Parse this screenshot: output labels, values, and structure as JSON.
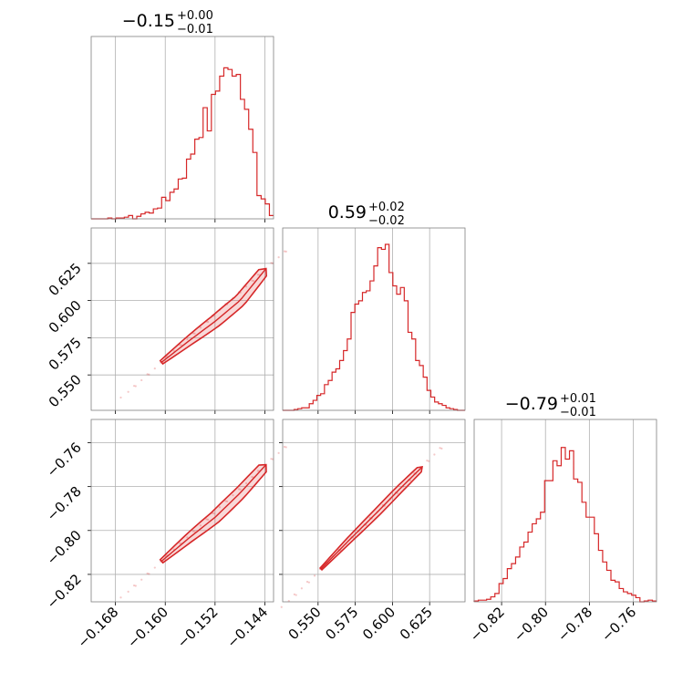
{
  "chart_data": {
    "type": "corner",
    "color": "#d62728",
    "parameters": [
      {
        "title_main": "−0.15",
        "title_sup": "+0.00",
        "title_sub": "−0.01",
        "ticks": [
          -0.168,
          -0.16,
          -0.152,
          -0.144
        ],
        "tick_labels": [
          "−0.168",
          "−0.160",
          "−0.152",
          "−0.144"
        ],
        "range": [
          -0.1719,
          -0.1426
        ]
      },
      {
        "title_main": "0.59",
        "title_sup": "+0.02",
        "title_sub": "−0.02",
        "ticks": [
          0.55,
          0.575,
          0.6,
          0.625
        ],
        "tick_labels": [
          "0.550",
          "0.575",
          "0.600",
          "0.625"
        ],
        "range": [
          0.5262,
          0.6488
        ]
      },
      {
        "title_main": "−0.79",
        "title_sup": "+0.01",
        "title_sub": "−0.01",
        "ticks": [
          -0.82,
          -0.8,
          -0.78,
          -0.76
        ],
        "tick_labels": [
          "−0.82",
          "−0.80",
          "−0.78",
          "−0.76"
        ],
        "range": [
          -0.8325,
          -0.7494
        ]
      }
    ],
    "histograms": [
      [
        0.0,
        0.0,
        0.0,
        0.0,
        0.005,
        0.0,
        0.005,
        0.005,
        0.01,
        0.02,
        0.0,
        0.015,
        0.03,
        0.04,
        0.035,
        0.06,
        0.065,
        0.13,
        0.11,
        0.16,
        0.18,
        0.24,
        0.245,
        0.36,
        0.39,
        0.48,
        0.49,
        0.67,
        0.53,
        0.75,
        0.77,
        0.86,
        0.91,
        0.9,
        0.86,
        0.87,
        0.72,
        0.66,
        0.54,
        0.4,
        0.14,
        0.12,
        0.09,
        0.02
      ],
      [
        0.0,
        0.0,
        0.0,
        0.005,
        0.01,
        0.015,
        0.015,
        0.04,
        0.06,
        0.09,
        0.1,
        0.155,
        0.18,
        0.23,
        0.25,
        0.3,
        0.36,
        0.43,
        0.59,
        0.64,
        0.66,
        0.71,
        0.72,
        0.78,
        0.87,
        0.98,
        0.97,
        1.0,
        0.83,
        0.75,
        0.7,
        0.74,
        0.66,
        0.47,
        0.43,
        0.3,
        0.27,
        0.2,
        0.12,
        0.08,
        0.05,
        0.04,
        0.03,
        0.015,
        0.01,
        0.005,
        0.0,
        0.0
      ],
      [
        0.005,
        0.01,
        0.01,
        0.015,
        0.03,
        0.05,
        0.11,
        0.14,
        0.2,
        0.23,
        0.27,
        0.33,
        0.36,
        0.42,
        0.47,
        0.5,
        0.54,
        0.73,
        0.73,
        0.85,
        0.82,
        0.93,
        0.86,
        0.91,
        0.74,
        0.72,
        0.6,
        0.51,
        0.51,
        0.41,
        0.31,
        0.24,
        0.19,
        0.13,
        0.12,
        0.08,
        0.06,
        0.05,
        0.04,
        0.025,
        0.0,
        0.005,
        0.01,
        0.005
      ]
    ],
    "pairs": [
      {
        "x_param": 0,
        "y_param": 1,
        "x_range": [
          -0.1719,
          -0.1426
        ],
        "y_range": [
          0.5262,
          0.6488
        ],
        "centerline": [
          [
            -0.1606,
            0.5585
          ],
          [
            -0.156,
            0.5735
          ],
          [
            -0.152,
            0.586
          ],
          [
            -0.148,
            0.6
          ],
          [
            -0.1438,
            0.6215
          ]
        ]
      },
      {
        "x_param": 0,
        "y_param": 2,
        "x_range": [
          -0.1719,
          -0.1426
        ],
        "y_range": [
          -0.8325,
          -0.7494
        ],
        "centerline": [
          [
            -0.1606,
            -0.814
          ],
          [
            -0.156,
            -0.803
          ],
          [
            -0.152,
            -0.794
          ],
          [
            -0.148,
            -0.783
          ],
          [
            -0.1438,
            -0.77
          ]
        ]
      },
      {
        "x_param": 1,
        "y_param": 2,
        "x_range": [
          0.5262,
          0.6488
        ],
        "y_range": [
          -0.8325,
          -0.7494
        ],
        "centerline": [
          [
            0.552,
            -0.8175
          ],
          [
            0.57,
            -0.805
          ],
          [
            0.59,
            -0.7915
          ],
          [
            0.605,
            -0.781
          ],
          [
            0.62,
            -0.771
          ]
        ]
      }
    ],
    "grid": true
  }
}
